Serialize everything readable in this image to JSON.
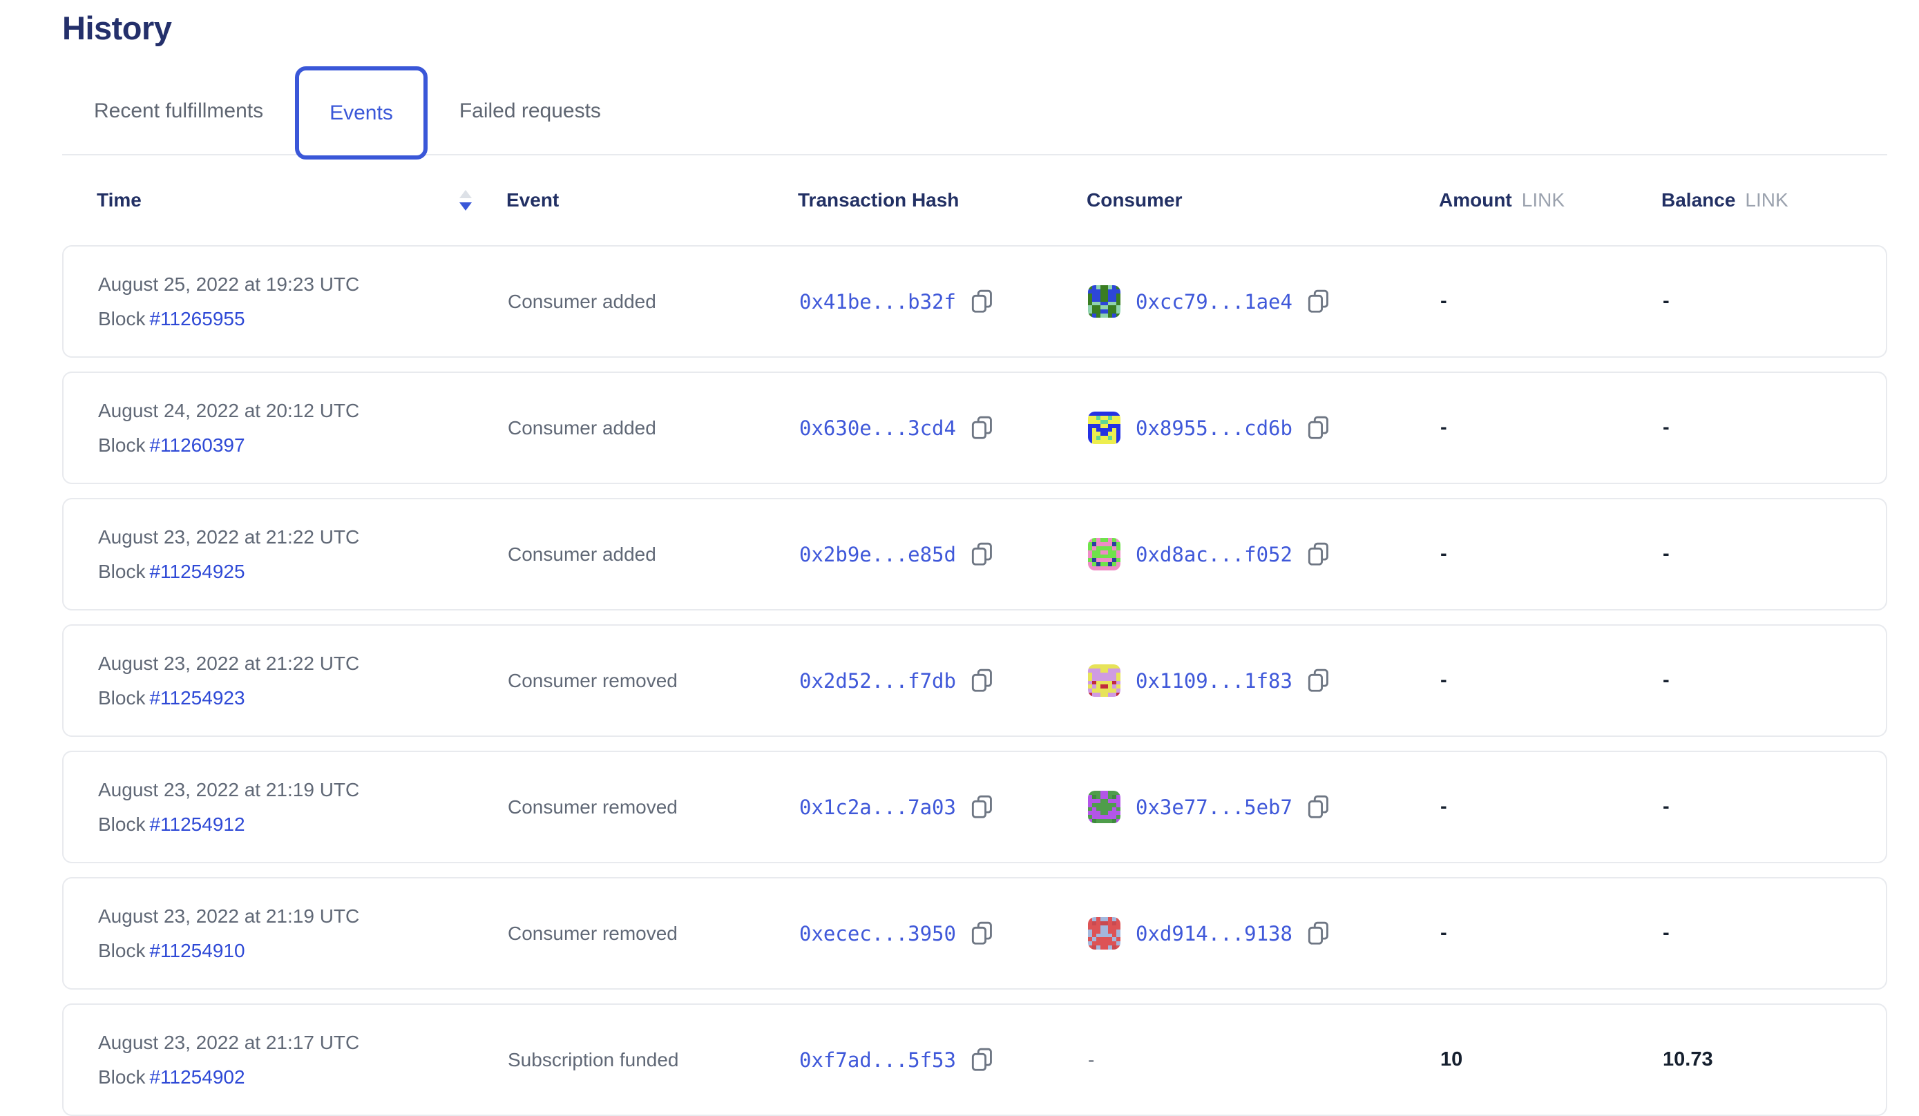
{
  "page": {
    "title": "History"
  },
  "tabs": [
    {
      "label": "Recent fulfillments",
      "active": false
    },
    {
      "label": "Events",
      "active": true
    },
    {
      "label": "Failed requests",
      "active": false
    }
  ],
  "table": {
    "columns": {
      "time": "Time",
      "event": "Event",
      "tx_hash": "Transaction Hash",
      "consumer": "Consumer",
      "amount": "Amount",
      "balance": "Balance",
      "unit": "LINK"
    },
    "sort": {
      "column": "Time",
      "direction": "desc"
    },
    "labels": {
      "block_label": "Block"
    },
    "rows": [
      {
        "time": {
          "date": "August 25, 2022 at 19:23 UTC",
          "block_number": "#11265955"
        },
        "event": "Consumer added",
        "tx_hash": "0x41be...b32f",
        "consumer": {
          "address": "0xcc79...1ae4",
          "avatar_colors": [
            "#3a7d22",
            "#2d46d8",
            "#8fd3ae"
          ]
        },
        "amount": "-",
        "balance": "-"
      },
      {
        "time": {
          "date": "August 24, 2022 at 20:12 UTC",
          "block_number": "#11260397"
        },
        "event": "Consumer added",
        "tx_hash": "0x630e...3cd4",
        "consumer": {
          "address": "0x8955...cd6b",
          "avatar_colors": [
            "#2431e3",
            "#edee4e",
            "#5fd795"
          ]
        },
        "amount": "-",
        "balance": "-"
      },
      {
        "time": {
          "date": "August 23, 2022 at 21:22 UTC",
          "block_number": "#11254925"
        },
        "event": "Consumer added",
        "tx_hash": "0x2b9e...e85d",
        "consumer": {
          "address": "0xd8ac...f052",
          "avatar_colors": [
            "#6fe24b",
            "#ef8cc6",
            "#2b3f9e"
          ]
        },
        "amount": "-",
        "balance": "-"
      },
      {
        "time": {
          "date": "August 23, 2022 at 21:22 UTC",
          "block_number": "#11254923"
        },
        "event": "Consumer removed",
        "tx_hash": "0x2d52...f7db",
        "consumer": {
          "address": "0x1109...1f83",
          "avatar_colors": [
            "#cf9be2",
            "#e7e359",
            "#c22a3c"
          ]
        },
        "amount": "-",
        "balance": "-"
      },
      {
        "time": {
          "date": "August 23, 2022 at 21:19 UTC",
          "block_number": "#11254912"
        },
        "event": "Consumer removed",
        "tx_hash": "0x1c2a...7a03",
        "consumer": {
          "address": "0x3e77...5eb7",
          "avatar_colors": [
            "#4f9d4b",
            "#b356e8",
            "#3e8a3e"
          ]
        },
        "amount": "-",
        "balance": "-"
      },
      {
        "time": {
          "date": "August 23, 2022 at 21:19 UTC",
          "block_number": "#11254910"
        },
        "event": "Consumer removed",
        "tx_hash": "0xecec...3950",
        "consumer": {
          "address": "0xd914...9138",
          "avatar_colors": [
            "#dd5355",
            "#a3b7dd",
            "#c94a50"
          ]
        },
        "amount": "-",
        "balance": "-"
      },
      {
        "time": {
          "date": "August 23, 2022 at 21:17 UTC",
          "block_number": "#11254902"
        },
        "event": "Subscription funded",
        "tx_hash": "0xf7ad...5f53",
        "consumer": null,
        "consumer_placeholder": "-",
        "amount": "10",
        "balance": "10.73"
      }
    ]
  },
  "colors": {
    "heading": "#24306b",
    "header_label": "#223064",
    "body_gray": "#606876",
    "unit_gray": "#9ba2ae",
    "link_blue": "#2e49d6",
    "hash_blue": "#3f58d9",
    "tab_active_blue": "#3a57d8",
    "card_border": "#e8eaee",
    "dark_value": "#16202f",
    "sort_up": "#dde1e7",
    "sort_down": "#3a57d8",
    "copy_icon_gray": "#6e7683"
  }
}
